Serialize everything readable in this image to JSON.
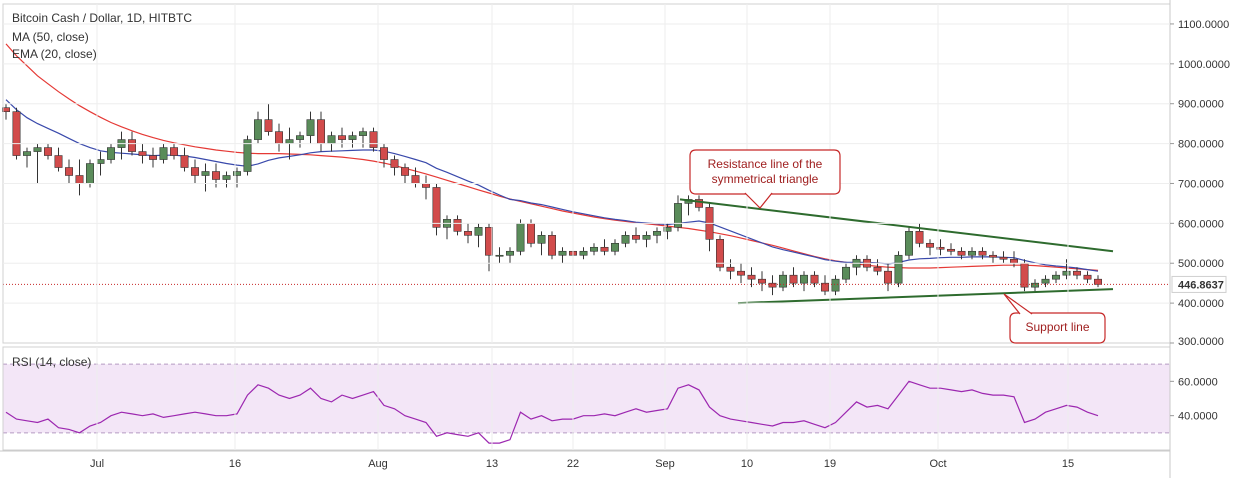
{
  "colors": {
    "up": "#5a8c5a",
    "down": "#d24b4b",
    "ma": "#e53935",
    "ema": "#3949ab",
    "rsi": "#9c27b0",
    "trend": "#2e6b2e",
    "grid": "#eeeeee",
    "rsi_band": "#f3e6f7",
    "annotation": "#c62828",
    "price_line": "#c62828"
  },
  "chart_data": [
    {
      "type": "candlestick",
      "title": "Bitcoin Cash / Dollar, 1D, HITBTC",
      "ylim": [
        300,
        1150
      ],
      "y_ticks": [
        "1100.0000",
        "1000.0000",
        "900.0000",
        "800.0000",
        "700.0000",
        "600.0000",
        "500.0000",
        "400.0000",
        "300.0000"
      ],
      "x_ticks": [
        "Jul",
        "16",
        "Aug",
        "13",
        "22",
        "Sep",
        "10",
        "19",
        "Oct",
        "15"
      ],
      "last_price": "446.8637",
      "ohlc": [
        [
          890,
          900,
          860,
          880
        ],
        [
          880,
          890,
          760,
          770
        ],
        [
          770,
          790,
          740,
          780
        ],
        [
          780,
          800,
          700,
          790
        ],
        [
          790,
          800,
          760,
          770
        ],
        [
          770,
          790,
          730,
          740
        ],
        [
          740,
          760,
          700,
          720
        ],
        [
          720,
          760,
          670,
          700
        ],
        [
          700,
          760,
          690,
          750
        ],
        [
          750,
          780,
          720,
          760
        ],
        [
          760,
          800,
          750,
          790
        ],
        [
          790,
          830,
          760,
          810
        ],
        [
          810,
          830,
          770,
          780
        ],
        [
          780,
          800,
          750,
          770
        ],
        [
          770,
          790,
          740,
          760
        ],
        [
          760,
          800,
          750,
          790
        ],
        [
          790,
          800,
          760,
          770
        ],
        [
          770,
          790,
          730,
          740
        ],
        [
          740,
          760,
          700,
          720
        ],
        [
          720,
          750,
          680,
          730
        ],
        [
          730,
          750,
          690,
          710
        ],
        [
          710,
          730,
          690,
          720
        ],
        [
          720,
          740,
          690,
          730
        ],
        [
          730,
          820,
          720,
          810
        ],
        [
          810,
          880,
          800,
          860
        ],
        [
          860,
          900,
          820,
          830
        ],
        [
          830,
          850,
          780,
          800
        ],
        [
          800,
          840,
          760,
          810
        ],
        [
          810,
          830,
          790,
          820
        ],
        [
          820,
          880,
          800,
          860
        ],
        [
          860,
          880,
          780,
          800
        ],
        [
          800,
          830,
          780,
          820
        ],
        [
          820,
          840,
          790,
          810
        ],
        [
          810,
          830,
          790,
          820
        ],
        [
          820,
          840,
          790,
          830
        ],
        [
          830,
          840,
          780,
          790
        ],
        [
          790,
          800,
          740,
          760
        ],
        [
          760,
          770,
          720,
          740
        ],
        [
          740,
          750,
          700,
          720
        ],
        [
          720,
          740,
          690,
          700
        ],
        [
          700,
          720,
          660,
          690
        ],
        [
          690,
          700,
          570,
          590
        ],
        [
          590,
          620,
          560,
          610
        ],
        [
          610,
          620,
          570,
          580
        ],
        [
          580,
          600,
          550,
          570
        ],
        [
          570,
          600,
          540,
          590
        ],
        [
          590,
          600,
          480,
          520
        ],
        [
          520,
          540,
          500,
          520
        ],
        [
          520,
          540,
          500,
          530
        ],
        [
          530,
          610,
          520,
          600
        ],
        [
          600,
          610,
          540,
          550
        ],
        [
          550,
          580,
          520,
          570
        ],
        [
          570,
          580,
          510,
          520
        ],
        [
          520,
          540,
          500,
          530
        ],
        [
          530,
          540,
          510,
          520
        ],
        [
          520,
          540,
          510,
          530
        ],
        [
          530,
          550,
          520,
          540
        ],
        [
          540,
          560,
          520,
          530
        ],
        [
          530,
          560,
          520,
          550
        ],
        [
          550,
          580,
          540,
          570
        ],
        [
          570,
          590,
          550,
          560
        ],
        [
          560,
          580,
          540,
          570
        ],
        [
          570,
          590,
          550,
          580
        ],
        [
          580,
          600,
          560,
          590
        ],
        [
          590,
          670,
          580,
          650
        ],
        [
          650,
          670,
          620,
          660
        ],
        [
          660,
          670,
          630,
          640
        ],
        [
          640,
          650,
          530,
          560
        ],
        [
          560,
          570,
          480,
          490
        ],
        [
          490,
          510,
          460,
          480
        ],
        [
          480,
          500,
          450,
          470
        ],
        [
          470,
          490,
          440,
          460
        ],
        [
          460,
          480,
          430,
          450
        ],
        [
          450,
          470,
          420,
          440
        ],
        [
          440,
          480,
          430,
          470
        ],
        [
          470,
          490,
          440,
          450
        ],
        [
          450,
          480,
          430,
          470
        ],
        [
          470,
          480,
          440,
          450
        ],
        [
          450,
          470,
          420,
          430
        ],
        [
          430,
          470,
          420,
          460
        ],
        [
          460,
          500,
          450,
          490
        ],
        [
          490,
          520,
          470,
          510
        ],
        [
          510,
          520,
          480,
          490
        ],
        [
          490,
          510,
          470,
          480
        ],
        [
          480,
          500,
          430,
          450
        ],
        [
          450,
          530,
          440,
          520
        ],
        [
          520,
          590,
          510,
          580
        ],
        [
          580,
          600,
          540,
          550
        ],
        [
          550,
          560,
          520,
          540
        ],
        [
          540,
          560,
          520,
          535
        ],
        [
          535,
          550,
          520,
          530
        ],
        [
          530,
          540,
          510,
          520
        ],
        [
          520,
          540,
          510,
          530
        ],
        [
          530,
          540,
          510,
          520
        ],
        [
          520,
          530,
          500,
          515
        ],
        [
          515,
          530,
          500,
          510
        ],
        [
          510,
          530,
          490,
          500
        ],
        [
          500,
          510,
          430,
          440
        ],
        [
          440,
          460,
          430,
          450
        ],
        [
          450,
          470,
          440,
          460
        ],
        [
          460,
          480,
          450,
          470
        ],
        [
          470,
          510,
          460,
          480
        ],
        [
          480,
          490,
          460,
          470
        ],
        [
          470,
          480,
          450,
          460
        ],
        [
          460,
          470,
          440,
          447
        ]
      ],
      "ma50": [
        1050,
        1020,
        995,
        970,
        950,
        930,
        912,
        895,
        880,
        866,
        853,
        842,
        832,
        823,
        815,
        808,
        802,
        797,
        792,
        788,
        784,
        781,
        778,
        776,
        775,
        775,
        775,
        774,
        773,
        772,
        770,
        768,
        766,
        763,
        760,
        756,
        751,
        745,
        738,
        731,
        724,
        716,
        708,
        700,
        692,
        684,
        676,
        668,
        661,
        655,
        649,
        643,
        637,
        631,
        626,
        621,
        616,
        612,
        608,
        605,
        602,
        599,
        596,
        593,
        590,
        587,
        583,
        579,
        574,
        569,
        563,
        557,
        551,
        545,
        538,
        531,
        524,
        517,
        511,
        506,
        502,
        498,
        495,
        492,
        490,
        489,
        488,
        488,
        488,
        489,
        490,
        491,
        492,
        493,
        494,
        495,
        495,
        495,
        494,
        492,
        490,
        488,
        486,
        484,
        482
      ],
      "ema20": [
        910,
        885,
        865,
        850,
        838,
        826,
        813,
        800,
        790,
        782,
        778,
        776,
        774,
        772,
        770,
        771,
        771,
        769,
        765,
        760,
        755,
        750,
        746,
        743,
        749,
        758,
        764,
        768,
        772,
        777,
        780,
        781,
        782,
        783,
        784,
        784,
        781,
        775,
        768,
        760,
        752,
        738,
        728,
        717,
        706,
        696,
        683,
        671,
        660,
        657,
        651,
        647,
        641,
        635,
        629,
        624,
        619,
        614,
        610,
        607,
        603,
        601,
        599,
        597,
        600,
        603,
        606,
        601,
        591,
        581,
        571,
        561,
        551,
        541,
        534,
        528,
        522,
        516,
        509,
        505,
        502,
        502,
        502,
        501,
        498,
        502,
        508,
        511,
        512,
        514,
        515,
        515,
        516,
        516,
        516,
        515,
        514,
        507,
        501,
        496,
        493,
        491,
        488,
        484,
        480
      ],
      "trendlines": [
        {
          "name": "Resistance line of the symmetrical triangle",
          "from": [
            64,
            660
          ],
          "to": [
            107,
            530
          ]
        },
        {
          "name": "Support line",
          "from": [
            73,
            400
          ],
          "to": [
            107,
            435
          ]
        }
      ]
    },
    {
      "type": "line",
      "title": "RSI (14, close)",
      "ylim": [
        20,
        80
      ],
      "y_ticks": [
        "60.0000",
        "40.0000"
      ],
      "band": [
        30,
        70
      ],
      "values": [
        42,
        38,
        37,
        36,
        38,
        33,
        32,
        30,
        34,
        36,
        40,
        42,
        41,
        40,
        41,
        39,
        40,
        41,
        42,
        41,
        40,
        40,
        41,
        52,
        58,
        56,
        52,
        50,
        52,
        56,
        50,
        48,
        52,
        50,
        52,
        54,
        46,
        44,
        40,
        38,
        36,
        28,
        30,
        29,
        28,
        30,
        24,
        24,
        26,
        42,
        38,
        40,
        37,
        38,
        38,
        40,
        40,
        41,
        40,
        42,
        44,
        42,
        43,
        44,
        56,
        58,
        55,
        45,
        40,
        38,
        37,
        36,
        35,
        34,
        36,
        36,
        37,
        35,
        33,
        36,
        42,
        48,
        45,
        46,
        44,
        52,
        60,
        58,
        56,
        56,
        55,
        54,
        55,
        53,
        52,
        52,
        51,
        36,
        38,
        42,
        44,
        46,
        45,
        42,
        40
      ]
    }
  ],
  "annotations": [
    {
      "label": "Resistance line of the symmetrical triangle",
      "lines": [
        "Resistance line of the",
        "symmetrical triangle"
      ]
    },
    {
      "label": "Support line",
      "lines": [
        "Support line"
      ]
    }
  ],
  "legend": {
    "title": "Bitcoin Cash / Dollar, 1D, HITBTC",
    "ma": "MA (50, close)",
    "ema": "EMA (20, close)",
    "rsi": "RSI (14, close)"
  }
}
